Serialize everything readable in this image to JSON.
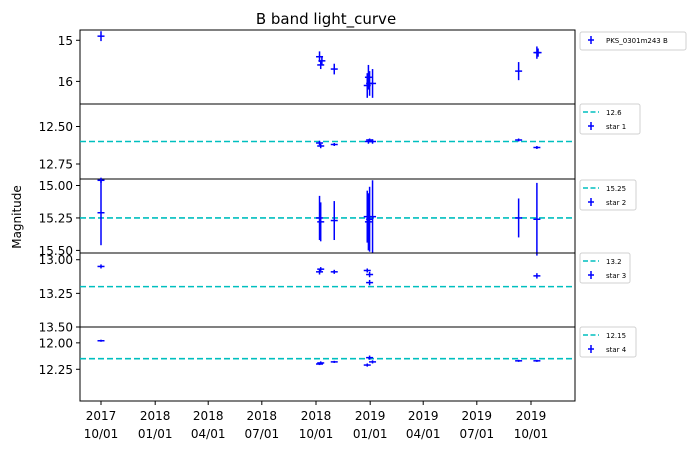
{
  "title": "B band light_curve",
  "ylabel": "Magnitude",
  "colors": {
    "points": "#0000ff",
    "reference": "#00bfbf",
    "axes": "#000000"
  },
  "x_ticks": [
    {
      "date": "2017-10-01",
      "line1": "2017",
      "line2": "10/01"
    },
    {
      "date": "2018-01-01",
      "line1": "2018",
      "line2": "01/01"
    },
    {
      "date": "2018-04-01",
      "line1": "2018",
      "line2": "04/01"
    },
    {
      "date": "2018-07-01",
      "line1": "2018",
      "line2": "07/01"
    },
    {
      "date": "2018-10-01",
      "line1": "2018",
      "line2": "10/01"
    },
    {
      "date": "2019-01-01",
      "line1": "2019",
      "line2": "01/01"
    },
    {
      "date": "2019-04-01",
      "line1": "2019",
      "line2": "04/01"
    },
    {
      "date": "2019-07-01",
      "line1": "2019",
      "line2": "07/01"
    },
    {
      "date": "2019-10-01",
      "line1": "2019",
      "line2": "10/01"
    }
  ],
  "chart_data": [
    {
      "type": "scatter",
      "name": "target",
      "ylim": [
        16.55,
        14.75
      ],
      "inverted_y": true,
      "yticks": [
        "15",
        "16"
      ],
      "ytick_values": [
        15,
        16
      ],
      "legend": [
        {
          "kind": "points",
          "label": "PKS_0301m243 B"
        }
      ],
      "points": [
        {
          "date": "2017-10-01",
          "y": 14.9,
          "err": 0.12
        },
        {
          "date": "2018-10-07",
          "y": 15.4,
          "err": 0.13
        },
        {
          "date": "2018-10-09",
          "y": 15.6,
          "err": 0.1
        },
        {
          "date": "2018-10-11",
          "y": 15.5,
          "err": 0.1
        },
        {
          "date": "2018-11-01",
          "y": 15.7,
          "err": 0.13
        },
        {
          "date": "2018-12-27",
          "y": 16.1,
          "err": 0.3
        },
        {
          "date": "2018-12-29",
          "y": 15.9,
          "err": 0.3
        },
        {
          "date": "2018-12-31",
          "y": 16.05,
          "err": 0.3
        },
        {
          "date": "2019-01-05",
          "y": 16.05,
          "err": 0.35
        },
        {
          "date": "2019-09-10",
          "y": 15.75,
          "err": 0.22
        },
        {
          "date": "2019-10-11",
          "y": 15.3,
          "err": 0.15
        },
        {
          "date": "2019-10-13",
          "y": 15.3,
          "err": 0.1
        }
      ]
    },
    {
      "type": "scatter",
      "name": "star 1",
      "ylim": [
        12.85,
        12.35
      ],
      "inverted_y": true,
      "reference": 12.6,
      "yticks": [
        "12.50",
        "12.75"
      ],
      "ytick_values": [
        12.5,
        12.75
      ],
      "legend": [
        {
          "kind": "line",
          "label": "12.6"
        },
        {
          "kind": "points",
          "label": "star 1"
        }
      ],
      "points": [
        {
          "date": "2018-10-07",
          "y": 12.61,
          "err": 0.015
        },
        {
          "date": "2018-10-09",
          "y": 12.63,
          "err": 0.015
        },
        {
          "date": "2018-11-01",
          "y": 12.62,
          "err": 0.01
        },
        {
          "date": "2018-12-29",
          "y": 12.6,
          "err": 0.015
        },
        {
          "date": "2018-12-31",
          "y": 12.59,
          "err": 0.01
        },
        {
          "date": "2019-01-05",
          "y": 12.6,
          "err": 0.015
        },
        {
          "date": "2019-09-10",
          "y": 12.59,
          "err": 0.01
        },
        {
          "date": "2019-10-11",
          "y": 12.64,
          "err": 0.01
        }
      ]
    },
    {
      "type": "scatter",
      "name": "star 2",
      "ylim": [
        15.52,
        14.95
      ],
      "inverted_y": true,
      "reference": 15.25,
      "yticks": [
        "15.00",
        "15.25",
        "15.50"
      ],
      "ytick_values": [
        15.0,
        15.25,
        15.5
      ],
      "legend": [
        {
          "kind": "line",
          "label": "15.25"
        },
        {
          "kind": "points",
          "label": "star 2"
        }
      ],
      "points": [
        {
          "date": "2017-10-01",
          "y": 14.96,
          "err": 0.02
        },
        {
          "date": "2017-10-01",
          "y": 15.21,
          "err": 0.25
        },
        {
          "date": "2018-10-07",
          "y": 15.25,
          "err": 0.17
        },
        {
          "date": "2018-10-09",
          "y": 15.28,
          "err": 0.15
        },
        {
          "date": "2018-11-01",
          "y": 15.27,
          "err": 0.15
        },
        {
          "date": "2018-12-27",
          "y": 15.24,
          "err": 0.2
        },
        {
          "date": "2018-12-29",
          "y": 15.28,
          "err": 0.22
        },
        {
          "date": "2018-12-31",
          "y": 15.26,
          "err": 0.25
        },
        {
          "date": "2019-01-05",
          "y": 15.24,
          "err": 0.28
        },
        {
          "date": "2019-09-10",
          "y": 15.25,
          "err": 0.15
        },
        {
          "date": "2019-10-11",
          "y": 15.26,
          "err": 0.28
        }
      ]
    },
    {
      "type": "scatter",
      "name": "star 3",
      "ylim": [
        13.5,
        12.95
      ],
      "inverted_y": true,
      "reference": 13.2,
      "yticks": [
        "13.00",
        "13.25",
        "13.50"
      ],
      "ytick_values": [
        13.0,
        13.25,
        13.5
      ],
      "legend": [
        {
          "kind": "line",
          "label": "13.2"
        },
        {
          "kind": "points",
          "label": "star 3"
        }
      ],
      "points": [
        {
          "date": "2017-10-01",
          "y": 13.05,
          "err": 0.015
        },
        {
          "date": "2018-10-07",
          "y": 13.09,
          "err": 0.02
        },
        {
          "date": "2018-10-09",
          "y": 13.07,
          "err": 0.015
        },
        {
          "date": "2018-11-01",
          "y": 13.09,
          "err": 0.015
        },
        {
          "date": "2018-12-27",
          "y": 13.08,
          "err": 0.015
        },
        {
          "date": "2018-12-31",
          "y": 13.11,
          "err": 0.02
        },
        {
          "date": "2018-12-31",
          "y": 13.17,
          "err": 0.02
        },
        {
          "date": "2019-10-11",
          "y": 13.12,
          "err": 0.02
        }
      ]
    },
    {
      "type": "scatter",
      "name": "star 4",
      "ylim": [
        12.55,
        11.85
      ],
      "inverted_y": true,
      "reference": 12.15,
      "yticks": [
        "12.00",
        "12.25"
      ],
      "ytick_values": [
        12.0,
        12.25
      ],
      "legend": [
        {
          "kind": "line",
          "label": "12.15"
        },
        {
          "kind": "points",
          "label": "star 4"
        }
      ],
      "points": [
        {
          "date": "2017-10-01",
          "y": 11.98,
          "err": 0.01
        },
        {
          "date": "2018-10-07",
          "y": 12.2,
          "err": 0.01
        },
        {
          "date": "2018-10-09",
          "y": 12.19,
          "err": 0.015
        },
        {
          "date": "2018-11-01",
          "y": 12.18,
          "err": 0.01
        },
        {
          "date": "2018-12-27",
          "y": 12.21,
          "err": 0.015
        },
        {
          "date": "2018-12-31",
          "y": 12.14,
          "err": 0.02
        },
        {
          "date": "2019-01-05",
          "y": 12.18,
          "err": 0.015
        },
        {
          "date": "2019-09-10",
          "y": 12.17,
          "err": 0.01
        },
        {
          "date": "2019-10-11",
          "y": 12.17,
          "err": 0.01
        }
      ]
    }
  ]
}
